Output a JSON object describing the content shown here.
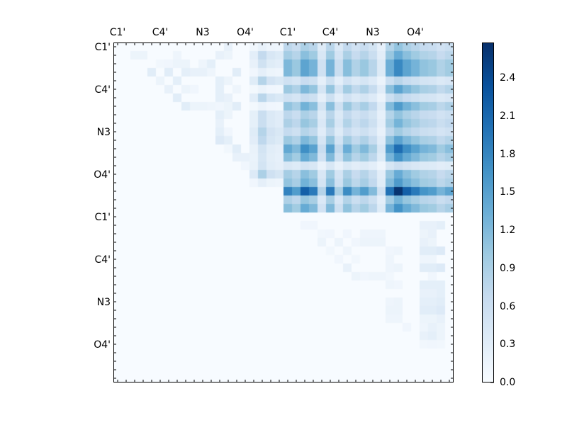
{
  "chart_data": {
    "type": "heatmap",
    "title": "",
    "xlabel": "",
    "ylabel": "",
    "n_rows": 40,
    "n_cols": 40,
    "x_tick_labels": [
      "C1'",
      "C4'",
      "N3",
      "O4'",
      "C1'",
      "C4'",
      "N3",
      "O4'"
    ],
    "x_tick_positions": [
      0,
      5,
      10,
      15,
      20,
      25,
      30,
      35
    ],
    "y_tick_labels": [
      "C1'",
      "C4'",
      "N3",
      "O4'",
      "C1'",
      "C4'",
      "N3",
      "O4'"
    ],
    "y_tick_positions": [
      0,
      5,
      10,
      15,
      20,
      25,
      30,
      35
    ],
    "x_tick_side": "top",
    "colormap": "Blues",
    "vmin": 0.0,
    "vmax": 2.68,
    "colorbar": {
      "ticks": [
        0.0,
        0.3,
        0.6,
        0.9,
        1.2,
        1.5,
        1.8,
        2.1,
        2.4
      ],
      "labels": [
        "0.0",
        "0.3",
        "0.6",
        "0.9",
        "1.2",
        "1.5",
        "1.8",
        "2.1",
        "2.4"
      ]
    },
    "block_upper_right": {
      "description": "Rows 0-19 x Cols 20-39, approximately outer product of row and column weights times scale",
      "rows": [
        0,
        19
      ],
      "cols": [
        20,
        39
      ],
      "scale": 1.35,
      "row_weights": [
        0.55,
        0.7,
        0.9,
        0.9,
        0.4,
        0.75,
        0.4,
        0.8,
        0.55,
        0.65,
        0.5,
        0.75,
        1.05,
        0.85,
        0.3,
        0.7,
        0.8,
        1.35,
        0.65,
        0.85
      ],
      "col_weights": [
        1.0,
        0.85,
        1.2,
        1.05,
        0.45,
        1.05,
        0.5,
        0.95,
        0.7,
        0.85,
        0.65,
        0.3,
        1.1,
        1.45,
        1.2,
        1.05,
        0.9,
        0.85,
        0.7,
        0.8
      ]
    },
    "block_upper_left_strong_cols": {
      "description": "Rows 0-19, cols 16-19 moderately blue stripe (col 17 strongest)",
      "col_weights": {
        "16": 0.35,
        "17": 0.9,
        "18": 0.55,
        "19": 0.45
      },
      "row_weights": [
        0.25,
        0.85,
        0.65,
        0.3,
        1.0,
        0.2,
        0.95,
        0.2,
        0.75,
        0.75,
        1.0,
        0.9,
        0.6,
        0.55,
        0.6,
        1.1,
        0.3,
        0.0,
        0.0,
        0.0
      ]
    },
    "sparse_cells": [
      {
        "r": 1,
        "c": 2,
        "v": 0.15
      },
      {
        "r": 1,
        "c": 3,
        "v": 0.15
      },
      {
        "r": 1,
        "c": 7,
        "v": 0.12
      },
      {
        "r": 1,
        "c": 12,
        "v": 0.2
      },
      {
        "r": 1,
        "c": 13,
        "v": 0.15
      },
      {
        "r": 0,
        "c": 13,
        "v": 0.2
      },
      {
        "r": 2,
        "c": 5,
        "v": 0.08
      },
      {
        "r": 2,
        "c": 6,
        "v": 0.1
      },
      {
        "r": 2,
        "c": 7,
        "v": 0.15
      },
      {
        "r": 2,
        "c": 8,
        "v": 0.15
      },
      {
        "r": 2,
        "c": 10,
        "v": 0.12
      },
      {
        "r": 2,
        "c": 11,
        "v": 0.25
      },
      {
        "r": 3,
        "c": 4,
        "v": 0.3
      },
      {
        "r": 3,
        "c": 6,
        "v": 0.3
      },
      {
        "r": 3,
        "c": 8,
        "v": 0.25
      },
      {
        "r": 3,
        "c": 9,
        "v": 0.2
      },
      {
        "r": 3,
        "c": 10,
        "v": 0.2
      },
      {
        "r": 3,
        "c": 11,
        "v": 0.12
      },
      {
        "r": 3,
        "c": 14,
        "v": 0.3
      },
      {
        "r": 4,
        "c": 5,
        "v": 0.15
      },
      {
        "r": 4,
        "c": 7,
        "v": 0.25
      },
      {
        "r": 4,
        "c": 12,
        "v": 0.25
      },
      {
        "r": 4,
        "c": 13,
        "v": 0.15
      },
      {
        "r": 5,
        "c": 6,
        "v": 0.2
      },
      {
        "r": 5,
        "c": 8,
        "v": 0.15
      },
      {
        "r": 5,
        "c": 9,
        "v": 0.1
      },
      {
        "r": 5,
        "c": 12,
        "v": 0.25
      },
      {
        "r": 5,
        "c": 14,
        "v": 0.12
      },
      {
        "r": 6,
        "c": 7,
        "v": 0.3
      },
      {
        "r": 6,
        "c": 12,
        "v": 0.25
      },
      {
        "r": 6,
        "c": 13,
        "v": 0.2
      },
      {
        "r": 7,
        "c": 8,
        "v": 0.3
      },
      {
        "r": 7,
        "c": 9,
        "v": 0.15
      },
      {
        "r": 7,
        "c": 10,
        "v": 0.15
      },
      {
        "r": 7,
        "c": 11,
        "v": 0.12
      },
      {
        "r": 7,
        "c": 12,
        "v": 0.1
      },
      {
        "r": 7,
        "c": 13,
        "v": 0.15
      },
      {
        "r": 7,
        "c": 14,
        "v": 0.3
      },
      {
        "r": 8,
        "c": 12,
        "v": 0.25
      },
      {
        "r": 8,
        "c": 13,
        "v": 0.15
      },
      {
        "r": 9,
        "c": 12,
        "v": 0.2
      },
      {
        "r": 10,
        "c": 12,
        "v": 0.25
      },
      {
        "r": 10,
        "c": 13,
        "v": 0.1
      },
      {
        "r": 11,
        "c": 12,
        "v": 0.35
      },
      {
        "r": 11,
        "c": 13,
        "v": 0.25
      },
      {
        "r": 12,
        "c": 14,
        "v": 0.3
      },
      {
        "r": 12,
        "c": 13,
        "v": 0.08
      },
      {
        "r": 13,
        "c": 14,
        "v": 0.2
      },
      {
        "r": 13,
        "c": 15,
        "v": 0.2
      },
      {
        "r": 14,
        "c": 15,
        "v": 0.1
      },
      {
        "r": 21,
        "c": 22,
        "v": 0.1
      },
      {
        "r": 21,
        "c": 23,
        "v": 0.1
      },
      {
        "r": 21,
        "c": 36,
        "v": 0.2
      },
      {
        "r": 21,
        "c": 37,
        "v": 0.2
      },
      {
        "r": 21,
        "c": 38,
        "v": 0.25
      },
      {
        "r": 22,
        "c": 24,
        "v": 0.08
      },
      {
        "r": 22,
        "c": 25,
        "v": 0.1
      },
      {
        "r": 22,
        "c": 27,
        "v": 0.1
      },
      {
        "r": 22,
        "c": 29,
        "v": 0.12
      },
      {
        "r": 22,
        "c": 30,
        "v": 0.12
      },
      {
        "r": 22,
        "c": 31,
        "v": 0.12
      },
      {
        "r": 22,
        "c": 36,
        "v": 0.15
      },
      {
        "r": 22,
        "c": 37,
        "v": 0.2
      },
      {
        "r": 23,
        "c": 24,
        "v": 0.15
      },
      {
        "r": 23,
        "c": 26,
        "v": 0.15
      },
      {
        "r": 23,
        "c": 28,
        "v": 0.1
      },
      {
        "r": 23,
        "c": 29,
        "v": 0.15
      },
      {
        "r": 23,
        "c": 30,
        "v": 0.15
      },
      {
        "r": 23,
        "c": 31,
        "v": 0.15
      },
      {
        "r": 23,
        "c": 36,
        "v": 0.2
      },
      {
        "r": 23,
        "c": 37,
        "v": 0.15
      },
      {
        "r": 24,
        "c": 25,
        "v": 0.08
      },
      {
        "r": 24,
        "c": 27,
        "v": 0.12
      },
      {
        "r": 24,
        "c": 32,
        "v": 0.1
      },
      {
        "r": 24,
        "c": 33,
        "v": 0.12
      },
      {
        "r": 24,
        "c": 36,
        "v": 0.3
      },
      {
        "r": 24,
        "c": 37,
        "v": 0.3
      },
      {
        "r": 24,
        "c": 38,
        "v": 0.35
      },
      {
        "r": 25,
        "c": 26,
        "v": 0.1
      },
      {
        "r": 25,
        "c": 28,
        "v": 0.08
      },
      {
        "r": 25,
        "c": 32,
        "v": 0.12
      },
      {
        "r": 25,
        "c": 36,
        "v": 0.12
      },
      {
        "r": 25,
        "c": 37,
        "v": 0.12
      },
      {
        "r": 26,
        "c": 27,
        "v": 0.2
      },
      {
        "r": 26,
        "c": 32,
        "v": 0.12
      },
      {
        "r": 26,
        "c": 33,
        "v": 0.15
      },
      {
        "r": 26,
        "c": 36,
        "v": 0.3
      },
      {
        "r": 26,
        "c": 37,
        "v": 0.3
      },
      {
        "r": 26,
        "c": 38,
        "v": 0.35
      },
      {
        "r": 27,
        "c": 28,
        "v": 0.15
      },
      {
        "r": 27,
        "c": 29,
        "v": 0.1
      },
      {
        "r": 27,
        "c": 30,
        "v": 0.12
      },
      {
        "r": 27,
        "c": 31,
        "v": 0.12
      },
      {
        "r": 27,
        "c": 32,
        "v": 0.08
      },
      {
        "r": 27,
        "c": 37,
        "v": 0.1
      },
      {
        "r": 28,
        "c": 32,
        "v": 0.12
      },
      {
        "r": 28,
        "c": 33,
        "v": 0.1
      },
      {
        "r": 28,
        "c": 36,
        "v": 0.25
      },
      {
        "r": 28,
        "c": 37,
        "v": 0.25
      },
      {
        "r": 28,
        "c": 38,
        "v": 0.25
      },
      {
        "r": 29,
        "c": 36,
        "v": 0.2
      },
      {
        "r": 29,
        "c": 37,
        "v": 0.2
      },
      {
        "r": 29,
        "c": 38,
        "v": 0.25
      },
      {
        "r": 30,
        "c": 32,
        "v": 0.12
      },
      {
        "r": 30,
        "c": 33,
        "v": 0.15
      },
      {
        "r": 30,
        "c": 36,
        "v": 0.25
      },
      {
        "r": 30,
        "c": 37,
        "v": 0.25
      },
      {
        "r": 30,
        "c": 38,
        "v": 0.3
      },
      {
        "r": 31,
        "c": 32,
        "v": 0.15
      },
      {
        "r": 31,
        "c": 33,
        "v": 0.15
      },
      {
        "r": 31,
        "c": 36,
        "v": 0.3
      },
      {
        "r": 31,
        "c": 37,
        "v": 0.3
      },
      {
        "r": 31,
        "c": 38,
        "v": 0.35
      },
      {
        "r": 32,
        "c": 32,
        "v": 0.12
      },
      {
        "r": 32,
        "c": 33,
        "v": 0.12
      },
      {
        "r": 32,
        "c": 36,
        "v": 0.15
      },
      {
        "r": 32,
        "c": 37,
        "v": 0.15
      },
      {
        "r": 32,
        "c": 38,
        "v": 0.2
      },
      {
        "r": 33,
        "c": 34,
        "v": 0.1
      },
      {
        "r": 33,
        "c": 36,
        "v": 0.12
      },
      {
        "r": 33,
        "c": 37,
        "v": 0.2
      },
      {
        "r": 33,
        "c": 38,
        "v": 0.15
      },
      {
        "r": 34,
        "c": 36,
        "v": 0.2
      },
      {
        "r": 34,
        "c": 37,
        "v": 0.25
      },
      {
        "r": 34,
        "c": 38,
        "v": 0.15
      },
      {
        "r": 35,
        "c": 36,
        "v": 0.08
      },
      {
        "r": 35,
        "c": 37,
        "v": 0.1
      },
      {
        "r": 35,
        "c": 38,
        "v": 0.08
      }
    ]
  }
}
